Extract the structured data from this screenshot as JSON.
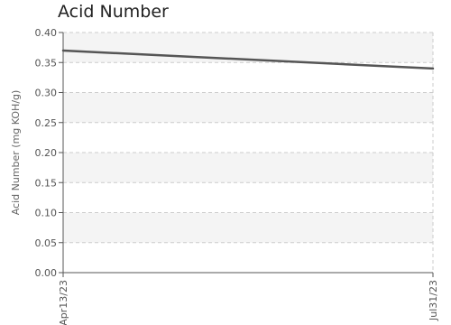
{
  "chart_data": {
    "type": "line",
    "title": "Acid Number",
    "xlabel": "",
    "ylabel": "Acid Number (mg KOH/g)",
    "ylim": [
      0.0,
      0.4
    ],
    "y_ticks": [
      "0.00",
      "0.05",
      "0.10",
      "0.15",
      "0.20",
      "0.25",
      "0.30",
      "0.35",
      "0.40"
    ],
    "x_tick_labels": [
      "Apr13/23",
      "Jul31/23"
    ],
    "grid": true,
    "legend": "none",
    "series": [
      {
        "x": [
          "2023-04-13",
          "2023-07-31"
        ],
        "values": [
          0.37,
          0.34
        ],
        "color": "#555555"
      }
    ]
  }
}
